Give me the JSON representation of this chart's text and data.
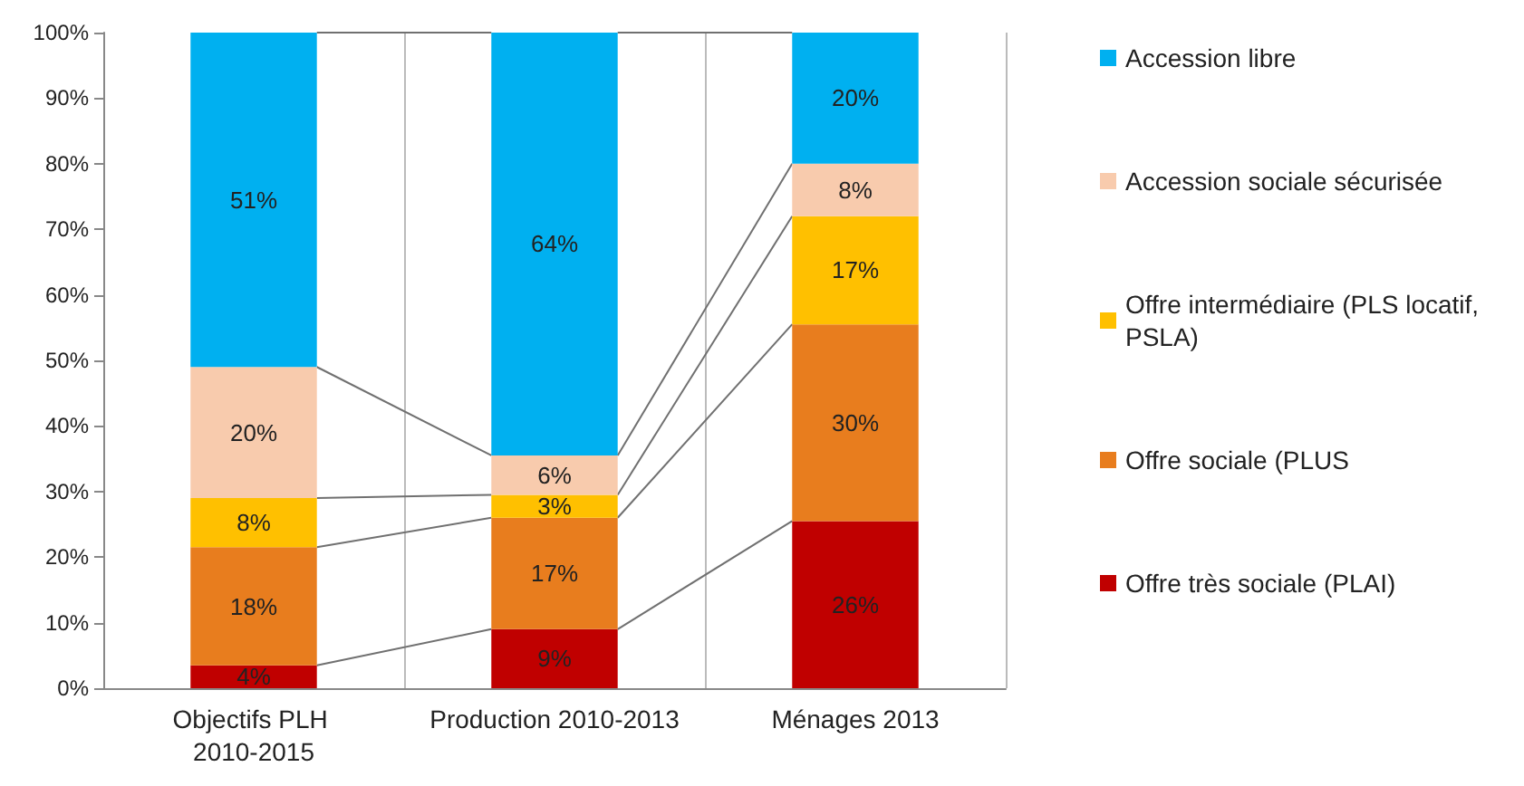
{
  "chart_data": {
    "type": "bar",
    "stacked": true,
    "categories": [
      "Objectifs PLH 2010-2015",
      "Production 2010-2013",
      "Ménages 2013"
    ],
    "series": [
      {
        "name": "Offre très sociale (PLAI)",
        "color": "#c00000",
        "values": [
          3.5,
          9,
          25.5
        ],
        "value_labels": [
          "4%",
          "9%",
          "26%"
        ]
      },
      {
        "name": "Offre sociale (PLUS",
        "color": "#e87d1e",
        "values": [
          18,
          17,
          30
        ],
        "value_labels": [
          "18%",
          "17%",
          "30%"
        ]
      },
      {
        "name": "Offre intermédiaire (PLS locatif, PSLA)",
        "color": "#ffc000",
        "values": [
          7.5,
          3.5,
          16.5
        ],
        "value_labels": [
          "8%",
          "3%",
          "17%"
        ]
      },
      {
        "name": "Accession sociale sécurisée",
        "color": "#f8cbad",
        "values": [
          20,
          6,
          8
        ],
        "value_labels": [
          "20%",
          "6%",
          "8%"
        ]
      },
      {
        "name": "Accession libre",
        "color": "#00b0f0",
        "values": [
          51,
          64.5,
          20
        ],
        "value_labels": [
          "51%",
          "64%",
          "20%"
        ]
      }
    ],
    "ylim": [
      0,
      100
    ],
    "yticks": [
      {
        "value": 0,
        "label": "0%"
      },
      {
        "value": 10,
        "label": "10%"
      },
      {
        "value": 20,
        "label": "20%"
      },
      {
        "value": 30,
        "label": "30%"
      },
      {
        "value": 40,
        "label": "40%"
      },
      {
        "value": 50,
        "label": "50%"
      },
      {
        "value": 60,
        "label": "60%"
      },
      {
        "value": 70,
        "label": "70%"
      },
      {
        "value": 80,
        "label": "80%"
      },
      {
        "value": 90,
        "label": "90%"
      },
      {
        "value": 100,
        "label": "100%"
      }
    ],
    "grid": "x",
    "legend": "right"
  }
}
